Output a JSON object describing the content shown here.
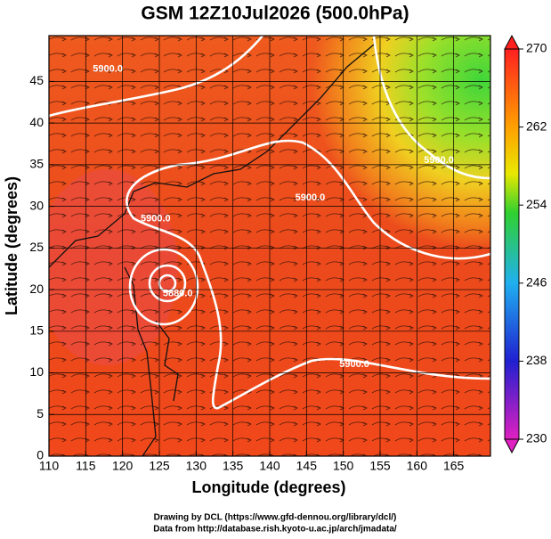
{
  "chart_data": {
    "type": "map",
    "title": "GSM 12Z10Jul2026 (500.0hPa)",
    "x_label": "Longitude (degrees)",
    "y_label": "Latitude  (degrees)",
    "xlim": [
      110,
      170
    ],
    "xticks": [
      110,
      115,
      120,
      125,
      130,
      135,
      140,
      145,
      150,
      155,
      160,
      165
    ],
    "ylim": [
      0,
      50.5
    ],
    "yticks": [
      0,
      5,
      10,
      15,
      20,
      25,
      30,
      35,
      40,
      45
    ],
    "grid": true,
    "colorbar": {
      "lim": [
        230,
        270
      ],
      "ticks": [
        230,
        238,
        246,
        254,
        262,
        270
      ]
    },
    "contour_labels": [
      {
        "text": "5900.0",
        "lon": 118,
        "lat": 46.5
      },
      {
        "text": "5900.0",
        "lon": 163,
        "lat": 35.5
      },
      {
        "text": "5900.0",
        "lon": 145.5,
        "lat": 31
      },
      {
        "text": "5900.0",
        "lon": 124.5,
        "lat": 28.5
      },
      {
        "text": "5880.0",
        "lon": 127.5,
        "lat": 19.5
      },
      {
        "text": "5900.0",
        "lon": 151.5,
        "lat": 11
      }
    ]
  },
  "credits": [
    "Drawing by DCL (https://www.gfd-dennou.org/library/dcl/)",
    "Data from http://database.rish.kyoto-u.ac.jp/arch/jmadata/"
  ]
}
